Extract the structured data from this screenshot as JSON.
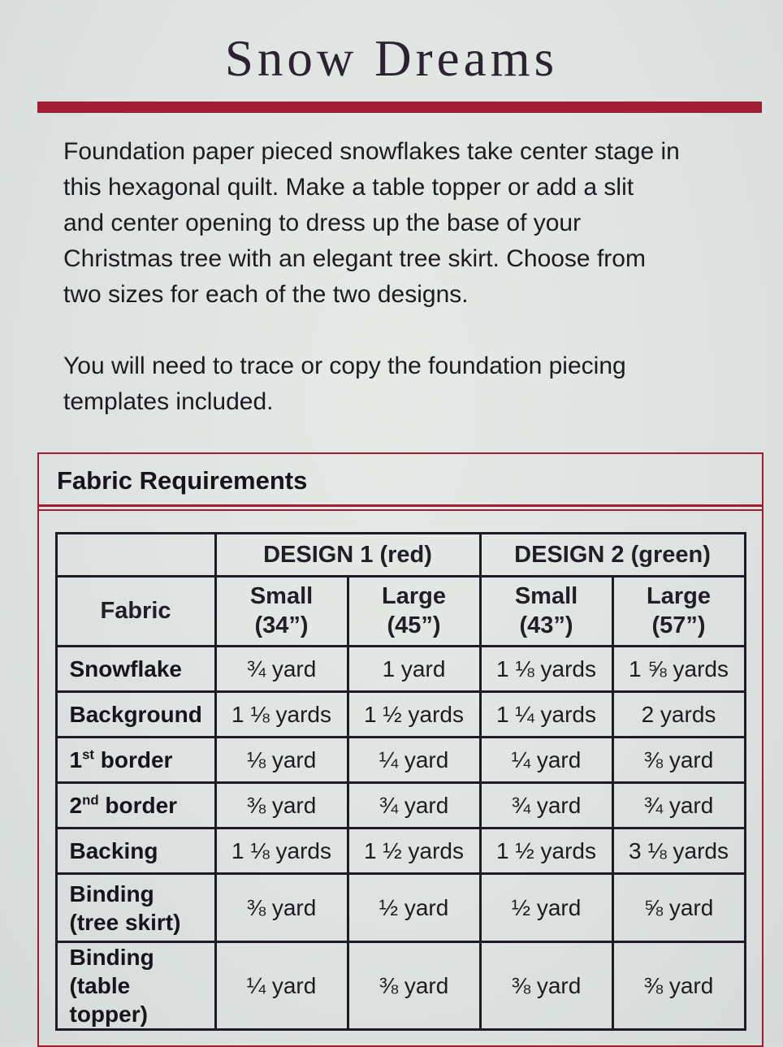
{
  "colors": {
    "accent_red": "#a01d33",
    "paper_background": "#dfe4e2",
    "text_ink": "#221e26",
    "table_border": "#1f1b26"
  },
  "page": {
    "title": "Snow Dreams",
    "paragraph1": "Foundation paper pieced snowflakes take center stage in\nthis hexagonal quilt.  Make a table topper or add a slit\nand center opening to dress up the base of your\nChristmas tree with an elegant tree skirt.  Choose from\ntwo sizes for each of the two designs.",
    "paragraph2": "You will need to trace or copy the foundation piecing\ntemplates included."
  },
  "fabric_requirements": {
    "section_title": "Fabric Requirements",
    "table": {
      "group_headers": [
        {
          "label": "DESIGN 1 (red)"
        },
        {
          "label": "DESIGN 2 (green)"
        }
      ],
      "column_headers": [
        {
          "label": "Fabric"
        },
        {
          "label": "Small\n(34”)"
        },
        {
          "label": "Large\n(45”)"
        },
        {
          "label": "Small\n(43”)"
        },
        {
          "label": "Large\n(57”)"
        }
      ],
      "rows": [
        {
          "fabric": {
            "pre": "Snowflake",
            "sup": "",
            "post": ""
          },
          "values": [
            "¾ yard",
            "1 yard",
            "1 ⅛ yards",
            "1 ⅝ yards"
          ]
        },
        {
          "fabric": {
            "pre": "Background",
            "sup": "",
            "post": ""
          },
          "values": [
            "1 ⅛ yards",
            "1 ½ yards",
            "1 ¼ yards",
            "2 yards"
          ]
        },
        {
          "fabric": {
            "pre": "1",
            "sup": "st",
            "post": " border"
          },
          "values": [
            "⅛ yard",
            "¼ yard",
            "¼ yard",
            "⅜ yard"
          ]
        },
        {
          "fabric": {
            "pre": "2",
            "sup": "nd",
            "post": " border"
          },
          "values": [
            "⅜ yard",
            "¾ yard",
            "¾ yard",
            "¾ yard"
          ]
        },
        {
          "fabric": {
            "pre": "Backing",
            "sup": "",
            "post": ""
          },
          "values": [
            "1 ⅛ yards",
            "1 ½ yards",
            "1 ½ yards",
            "3 ⅛ yards"
          ]
        },
        {
          "fabric": {
            "pre": "Binding\n(tree skirt)",
            "sup": "",
            "post": ""
          },
          "values": [
            "⅜ yard",
            "½ yard",
            "½ yard",
            "⅝ yard"
          ]
        },
        {
          "fabric": {
            "pre": "Binding\n(table topper)",
            "sup": "",
            "post": ""
          },
          "values": [
            "¼ yard",
            "⅜ yard",
            "⅜ yard",
            "⅜ yard"
          ]
        }
      ]
    }
  }
}
